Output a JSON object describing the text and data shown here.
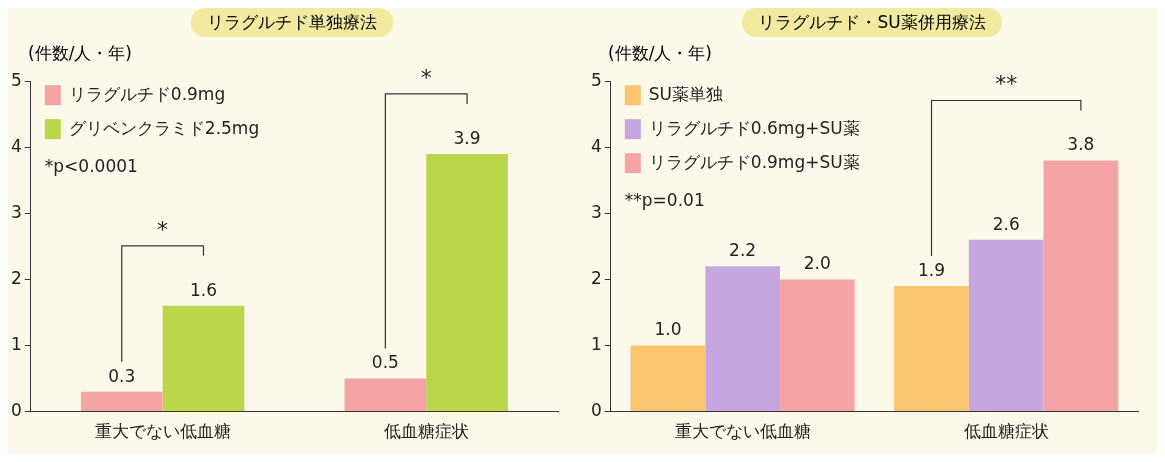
{
  "chart_data": [
    {
      "type": "bar",
      "title": "リラグルチド単独療法",
      "ylabel": "(件数/人・年)",
      "categories": [
        "重大でない低血糖",
        "低血糖症状"
      ],
      "series": [
        {
          "name": "リラグルチド0.9mg",
          "color": "#f4a3a6",
          "values": [
            0.3,
            0.5
          ],
          "value_labels": [
            "0.3",
            "0.5"
          ]
        },
        {
          "name": "グリベンクラミド2.5mg",
          "color": "#bcd64a",
          "values": [
            1.6,
            3.9
          ],
          "value_labels": [
            "1.6",
            "3.9"
          ]
        }
      ],
      "ylim": [
        0,
        5
      ],
      "yticks": [
        0,
        1,
        2,
        3,
        4,
        5
      ],
      "grid": false,
      "legend": "top left",
      "annotations": [
        "*",
        "*",
        "*p<0.0001"
      ]
    },
    {
      "type": "bar",
      "title": "リラグルチド・SU薬併用療法",
      "ylabel": "(件数/人・年)",
      "categories": [
        "重大でない低血糖",
        "低血糖症状"
      ],
      "series": [
        {
          "name": "SU薬単独",
          "color": "#f9c56e",
          "values": [
            1.0,
            1.9
          ],
          "value_labels": [
            "1.0",
            "1.9"
          ]
        },
        {
          "name": "リラグルチド0.6mg+SU薬",
          "color": "#c6a6df",
          "values": [
            2.2,
            2.6
          ],
          "value_labels": [
            "2.2",
            "2.6"
          ]
        },
        {
          "name": "リラグルチド0.9mg+SU薬",
          "color": "#f4a3a6",
          "values": [
            2.0,
            3.8
          ],
          "value_labels": [
            "2.0",
            "3.8"
          ]
        }
      ],
      "ylim": [
        0,
        5
      ],
      "yticks": [
        0,
        1,
        2,
        3,
        4,
        5
      ],
      "grid": false,
      "legend": "top left",
      "annotations": [
        "**",
        "**p=0.01"
      ]
    }
  ]
}
